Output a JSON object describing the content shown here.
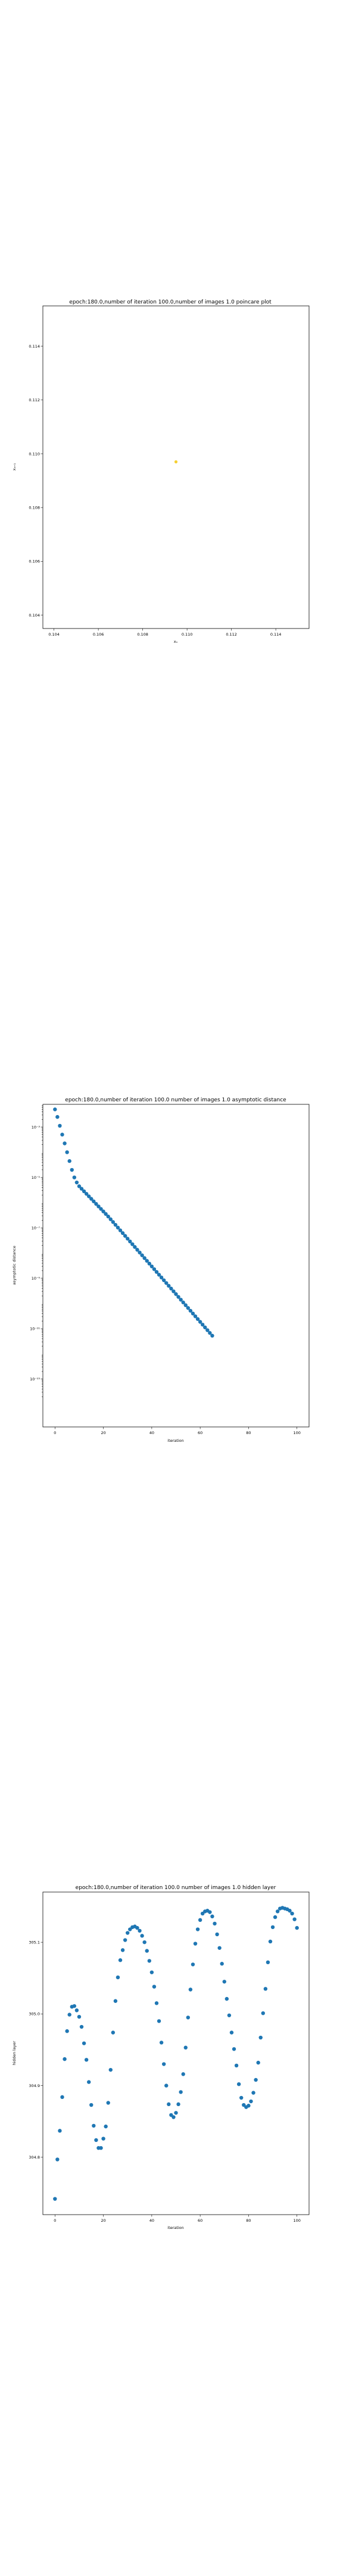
{
  "chart_data": [
    {
      "type": "scatter",
      "title": "epoch:180.0,number of iteration 100.0,number of images 1.0 poincare plot",
      "xlabel": "xₙ",
      "ylabel": "xₙ₊₁",
      "xlim": [
        0.1035,
        0.1155
      ],
      "ylim": [
        0.1035,
        0.1155
      ],
      "x_ticks": [
        0.104,
        0.106,
        0.108,
        0.11,
        0.112,
        0.114
      ],
      "x_tick_labels": [
        "0.104",
        "0.106",
        "0.108",
        "0.110",
        "0.112",
        "0.114"
      ],
      "y_ticks": [
        0.104,
        0.106,
        0.108,
        0.11,
        0.112,
        0.114
      ],
      "y_tick_labels": [
        "0.104",
        "0.106",
        "0.108",
        "0.110",
        "0.112",
        "0.114"
      ],
      "points_x": [
        0.1095
      ],
      "points_y": [
        0.1097
      ],
      "point_color": "#f5d033",
      "grid": false
    },
    {
      "type": "scatter",
      "title": "epoch:180.0,number of iteration 100.0  number of images 1.0 asymptotic distance",
      "xlabel": "iteration",
      "ylabel": "asymptotic distance",
      "xlim": [
        -5,
        105
      ],
      "ylog": true,
      "ylog_lim": [
        -14.9,
        -2.1
      ],
      "x_ticks": [
        0,
        20,
        40,
        60,
        80,
        100
      ],
      "x_tick_labels": [
        "0",
        "20",
        "40",
        "60",
        "80",
        "100"
      ],
      "y_ticks_exp": [
        -3,
        -5,
        -7,
        -9,
        -11,
        -13
      ],
      "y_tick_labels": [
        "10⁻³",
        "10⁻⁵",
        "10⁻⁷",
        "10⁻⁹",
        "10⁻¹¹",
        "10⁻¹³"
      ],
      "x": [
        0,
        1,
        2,
        3,
        4,
        5,
        6,
        7,
        8,
        9,
        10,
        11,
        12,
        13,
        14,
        15,
        16,
        17,
        18,
        19,
        20,
        21,
        22,
        23,
        24,
        25,
        26,
        27,
        28,
        29,
        30,
        31,
        32,
        33,
        34,
        35,
        36,
        37,
        38,
        39,
        40,
        41,
        42,
        43,
        44,
        45,
        46,
        47,
        48,
        49,
        50,
        51,
        52,
        53,
        54,
        55,
        56,
        57,
        58,
        59,
        60,
        61,
        62,
        63,
        64,
        65
      ],
      "y_exp": [
        -2.3,
        -2.6,
        -2.95,
        -3.3,
        -3.65,
        -4.0,
        -4.35,
        -4.7,
        -5.0,
        -5.2,
        -5.35,
        -5.45,
        -5.55,
        -5.65,
        -5.75,
        -5.85,
        -5.95,
        -6.05,
        -6.15,
        -6.25,
        -6.35,
        -6.45,
        -6.55,
        -6.66,
        -6.77,
        -6.88,
        -6.99,
        -7.1,
        -7.21,
        -7.32,
        -7.43,
        -7.54,
        -7.65,
        -7.76,
        -7.87,
        -7.98,
        -8.09,
        -8.2,
        -8.31,
        -8.42,
        -8.53,
        -8.64,
        -8.75,
        -8.86,
        -8.97,
        -9.08,
        -9.19,
        -9.3,
        -9.41,
        -9.52,
        -9.63,
        -9.74,
        -9.85,
        -9.96,
        -10.07,
        -10.18,
        -10.29,
        -10.4,
        -10.51,
        -10.62,
        -10.73,
        -10.84,
        -10.95,
        -11.06,
        -11.17,
        -11.28
      ],
      "point_color": "#1f77b4",
      "grid": false
    },
    {
      "type": "scatter",
      "title": "epoch:180.0,number of iteration 100.0  number of images 1.0 hidden layer",
      "xlabel": "iteration",
      "ylabel": "hidden layer",
      "xlim": [
        -5,
        105
      ],
      "ylim": [
        304.72,
        305.17
      ],
      "x_ticks": [
        0,
        20,
        40,
        60,
        80,
        100
      ],
      "x_tick_labels": [
        "0",
        "20",
        "40",
        "60",
        "80",
        "100"
      ],
      "y_ticks": [
        304.8,
        304.9,
        305.0,
        305.1
      ],
      "y_tick_labels": [
        "304.8",
        "304.9",
        "305.0",
        "305.1"
      ],
      "x": [
        0,
        1,
        2,
        3,
        4,
        5,
        6,
        7,
        8,
        9,
        10,
        11,
        12,
        13,
        14,
        15,
        16,
        17,
        18,
        19,
        20,
        21,
        22,
        23,
        24,
        25,
        26,
        27,
        28,
        29,
        30,
        31,
        32,
        33,
        34,
        35,
        36,
        37,
        38,
        39,
        40,
        41,
        42,
        43,
        44,
        45,
        46,
        47,
        48,
        49,
        50,
        51,
        52,
        53,
        54,
        55,
        56,
        57,
        58,
        59,
        60,
        61,
        62,
        63,
        64,
        65,
        66,
        67,
        68,
        69,
        70,
        71,
        72,
        73,
        74,
        75,
        76,
        77,
        78,
        79,
        80,
        81,
        82,
        83,
        84,
        85,
        86,
        87,
        88,
        89,
        90,
        91,
        92,
        93,
        94,
        95,
        96,
        97,
        98,
        99,
        100
      ],
      "y": [
        304.742,
        304.797,
        304.837,
        304.884,
        304.937,
        304.976,
        304.999,
        305.01,
        305.011,
        305.005,
        304.996,
        304.982,
        304.959,
        304.936,
        304.905,
        304.873,
        304.844,
        304.824,
        304.813,
        304.813,
        304.826,
        304.843,
        304.876,
        304.922,
        304.974,
        305.018,
        305.051,
        305.075,
        305.089,
        305.103,
        305.113,
        305.118,
        305.121,
        305.122,
        305.12,
        305.116,
        305.109,
        305.1,
        305.088,
        305.074,
        305.058,
        305.038,
        305.015,
        304.99,
        304.96,
        304.93,
        304.9,
        304.874,
        304.859,
        304.856,
        304.862,
        304.874,
        304.891,
        304.916,
        304.953,
        304.995,
        305.034,
        305.069,
        305.098,
        305.118,
        305.131,
        305.14,
        305.143,
        305.144,
        305.142,
        305.136,
        305.126,
        305.111,
        305.092,
        305.07,
        305.045,
        305.021,
        304.998,
        304.974,
        304.951,
        304.928,
        304.902,
        304.883,
        304.873,
        304.87,
        304.872,
        304.878,
        304.89,
        304.908,
        304.932,
        304.967,
        305.001,
        305.035,
        305.072,
        305.101,
        305.121,
        305.135,
        305.143,
        305.147,
        305.148,
        305.147,
        305.146,
        305.144,
        305.14,
        305.132,
        305.12
      ],
      "point_color": "#1f77b4",
      "grid": false
    }
  ]
}
